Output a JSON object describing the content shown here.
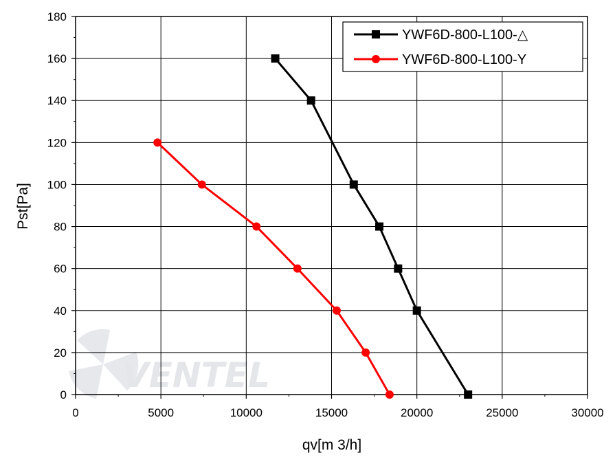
{
  "chart_data": {
    "type": "line",
    "title": "",
    "xlabel": "qv[m 3/h]",
    "ylabel": "Pst[Pa]",
    "xlim": [
      0,
      30000
    ],
    "ylim": [
      0,
      180
    ],
    "xticks": [
      "0",
      "5000",
      "10000",
      "15000",
      "20000",
      "25000",
      "30000"
    ],
    "yticks": [
      "0",
      "20",
      "40",
      "60",
      "80",
      "100",
      "120",
      "140",
      "160",
      "180"
    ],
    "grid": true,
    "legend_position": "top-right",
    "series": [
      {
        "name": "YWF6D-800-L100-△",
        "color": "#000000",
        "marker": "square",
        "x": [
          11700,
          13800,
          16300,
          17800,
          18900,
          20000,
          23000
        ],
        "y": [
          160,
          140,
          100,
          80,
          60,
          40,
          0
        ]
      },
      {
        "name": "YWF6D-800-L100-Y",
        "color": "#ff0000",
        "marker": "circle",
        "x": [
          4800,
          7400,
          10600,
          13000,
          15300,
          17000,
          18400
        ],
        "y": [
          120,
          100,
          80,
          60,
          40,
          20,
          0
        ]
      }
    ]
  },
  "watermark": {
    "text": "VENTEL",
    "icon": "fan-icon"
  }
}
